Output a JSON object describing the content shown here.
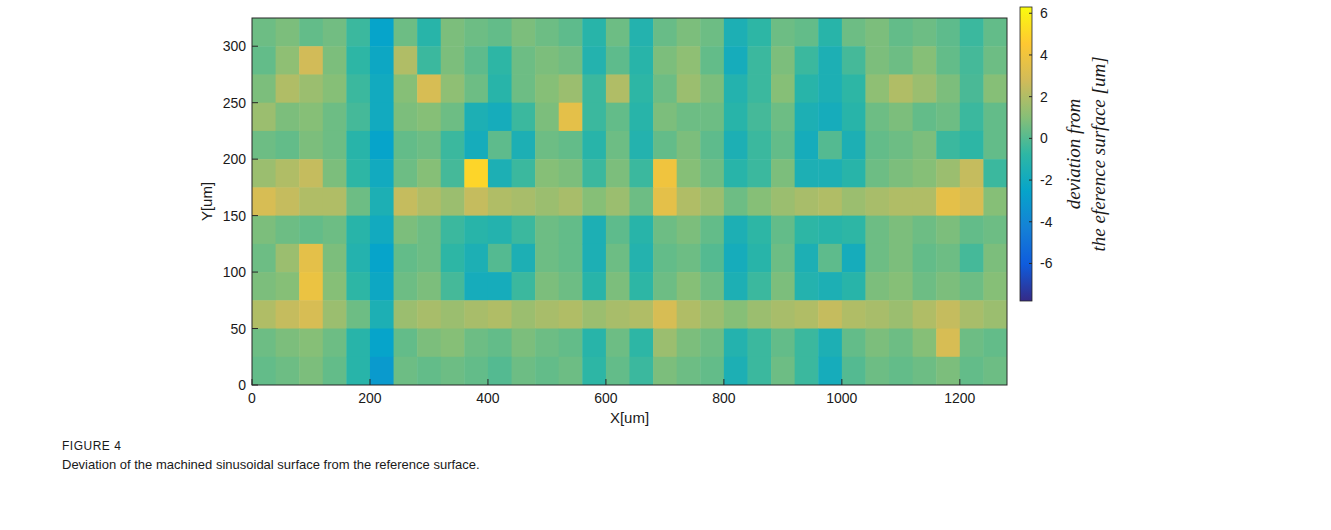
{
  "chart_data": {
    "type": "heatmap",
    "x_label": "X[um]",
    "y_label": "Y[um]",
    "xlim": [
      0,
      1280
    ],
    "ylim": [
      0,
      325
    ],
    "xticks": [
      0,
      200,
      400,
      600,
      800,
      1000,
      1200
    ],
    "yticks": [
      0,
      50,
      100,
      150,
      200,
      250,
      300
    ],
    "x": [
      20,
      60,
      100,
      140,
      180,
      220,
      260,
      300,
      340,
      380,
      420,
      460,
      500,
      540,
      580,
      620,
      660,
      700,
      740,
      780,
      820,
      860,
      900,
      940,
      980,
      1020,
      1060,
      1100,
      1140,
      1180,
      1220,
      1260
    ],
    "y": [
      312.5,
      287.5,
      262.5,
      237.5,
      212.5,
      187.5,
      162.5,
      137.5,
      112.5,
      87.5,
      62.5,
      37.5,
      12.5
    ],
    "values": [
      [
        0.5,
        0.8,
        0.3,
        0.6,
        -0.5,
        -2.5,
        0.5,
        -1.0,
        0.8,
        0.5,
        0.3,
        0.8,
        0.5,
        0.2,
        -1.0,
        0.5,
        -1.2,
        0.4,
        0.8,
        0.5,
        -1.5,
        -0.8,
        0.5,
        0.3,
        -1.0,
        0.5,
        0.8,
        0.3,
        0.5,
        0.2,
        -0.5,
        0.3
      ],
      [
        0.3,
        1.2,
        2.8,
        0.8,
        -0.8,
        -2.2,
        2.0,
        -0.5,
        0.8,
        0.2,
        -0.8,
        0.5,
        0.8,
        0.6,
        -1.2,
        0.2,
        -1.0,
        0.8,
        1.2,
        0.3,
        -1.8,
        -0.5,
        0.8,
        -0.5,
        -1.5,
        -0.3,
        0.8,
        0.5,
        1.0,
        0.3,
        -0.3,
        0.5
      ],
      [
        0.8,
        2.0,
        1.5,
        1.0,
        -0.5,
        -2.0,
        1.0,
        3.0,
        1.2,
        0.5,
        -1.0,
        0.5,
        1.0,
        1.5,
        -0.5,
        2.0,
        -0.8,
        0.5,
        1.5,
        0.8,
        -1.2,
        -0.5,
        1.0,
        -1.0,
        -1.5,
        -0.8,
        1.2,
        2.0,
        1.5,
        0.8,
        -0.2,
        1.0
      ],
      [
        1.5,
        0.8,
        1.0,
        0.5,
        -0.3,
        -2.0,
        0.8,
        1.0,
        0.5,
        -1.5,
        -1.8,
        -0.5,
        0.8,
        3.5,
        -0.5,
        0.3,
        -1.0,
        0.8,
        0.5,
        0.5,
        -1.0,
        -0.3,
        0.5,
        -1.5,
        -1.8,
        -1.0,
        0.5,
        0.8,
        0.3,
        0.5,
        -0.5,
        0.3
      ],
      [
        0.5,
        0.3,
        0.8,
        0.5,
        -1.0,
        -2.5,
        0.3,
        0.5,
        -0.5,
        -1.8,
        0.2,
        -1.5,
        0.5,
        0.3,
        -1.0,
        0.5,
        -1.2,
        0.3,
        0.8,
        0.2,
        -1.5,
        -0.5,
        0.3,
        -1.8,
        0.0,
        -1.5,
        0.3,
        0.5,
        0.8,
        -0.5,
        -0.8,
        0.3
      ],
      [
        1.5,
        2.0,
        2.5,
        0.8,
        -0.8,
        -2.0,
        0.5,
        1.0,
        -0.3,
        5.0,
        -1.5,
        -0.5,
        1.0,
        0.8,
        -0.5,
        0.8,
        -0.5,
        4.0,
        1.0,
        0.5,
        -1.0,
        -0.5,
        0.8,
        -1.5,
        -1.5,
        -1.0,
        0.5,
        0.8,
        1.0,
        1.5,
        2.5,
        -0.5
      ],
      [
        3.0,
        2.5,
        2.0,
        2.0,
        0.5,
        -1.5,
        2.5,
        2.0,
        1.5,
        2.5,
        2.0,
        1.8,
        1.5,
        1.8,
        1.0,
        1.5,
        0.5,
        3.5,
        2.0,
        1.5,
        0.5,
        1.0,
        1.5,
        1.8,
        2.0,
        1.5,
        1.8,
        2.0,
        2.0,
        3.5,
        3.0,
        1.0
      ],
      [
        0.8,
        0.5,
        0.3,
        0.5,
        -1.0,
        -2.0,
        0.8,
        0.5,
        -0.5,
        -1.0,
        -1.2,
        -0.5,
        0.5,
        0.3,
        -1.5,
        0.2,
        -1.0,
        0.5,
        0.8,
        0.3,
        -1.5,
        -0.8,
        0.3,
        -0.8,
        -1.0,
        -0.8,
        0.5,
        0.8,
        0.5,
        0.8,
        0.3,
        0.5
      ],
      [
        0.5,
        1.5,
        3.5,
        0.8,
        -1.2,
        -2.5,
        0.3,
        0.5,
        -0.8,
        -1.5,
        0.0,
        -1.5,
        0.5,
        0.3,
        -1.5,
        0.5,
        -1.2,
        0.3,
        0.5,
        0.0,
        -1.8,
        -1.0,
        0.5,
        -1.5,
        0.2,
        -1.8,
        0.5,
        0.8,
        0.3,
        0.5,
        -0.3,
        0.8
      ],
      [
        0.8,
        1.0,
        3.8,
        1.0,
        -0.8,
        -2.2,
        0.5,
        0.8,
        -0.3,
        -1.8,
        -1.8,
        -0.5,
        0.8,
        0.5,
        -1.0,
        0.8,
        -0.8,
        0.5,
        1.0,
        0.5,
        -1.5,
        -0.5,
        0.8,
        -1.2,
        -1.5,
        -1.0,
        0.8,
        1.0,
        0.5,
        0.8,
        0.5,
        1.0
      ],
      [
        2.0,
        2.5,
        3.0,
        1.5,
        0.5,
        -1.5,
        1.5,
        1.8,
        1.5,
        1.8,
        2.0,
        1.5,
        1.8,
        2.0,
        1.5,
        1.8,
        2.0,
        3.0,
        2.0,
        1.5,
        1.0,
        1.5,
        1.8,
        2.0,
        2.5,
        2.0,
        1.8,
        1.5,
        2.0,
        2.5,
        1.8,
        1.5
      ],
      [
        0.5,
        0.8,
        1.0,
        0.5,
        -1.0,
        -2.5,
        0.3,
        0.8,
        1.0,
        0.5,
        0.3,
        0.8,
        0.5,
        0.3,
        -1.0,
        0.5,
        -0.8,
        1.5,
        0.8,
        0.5,
        -1.2,
        -0.5,
        0.3,
        -0.5,
        -1.5,
        0.3,
        0.8,
        0.5,
        1.0,
        3.0,
        0.5,
        0.3
      ],
      [
        0.3,
        0.5,
        0.8,
        0.3,
        -1.0,
        -3.0,
        0.5,
        0.3,
        0.5,
        0.3,
        0.0,
        0.5,
        0.3,
        0.5,
        -0.8,
        0.3,
        -0.5,
        0.8,
        0.5,
        0.3,
        -1.5,
        -0.5,
        0.5,
        -0.5,
        -1.8,
        0.0,
        0.5,
        0.3,
        0.5,
        0.8,
        0.3,
        0.5
      ]
    ],
    "colorbar_range": [
      -7.8,
      6.3
    ],
    "colorbar_ticks": [
      -6,
      -4,
      -2,
      0,
      2,
      4,
      6
    ],
    "colorbar_label": [
      "deviation from",
      "the eference surface [um]"
    ],
    "caption": {
      "figure": "FIGURE 4",
      "text": "Deviation of the machined sinusoidal surface from the reference surface."
    }
  }
}
